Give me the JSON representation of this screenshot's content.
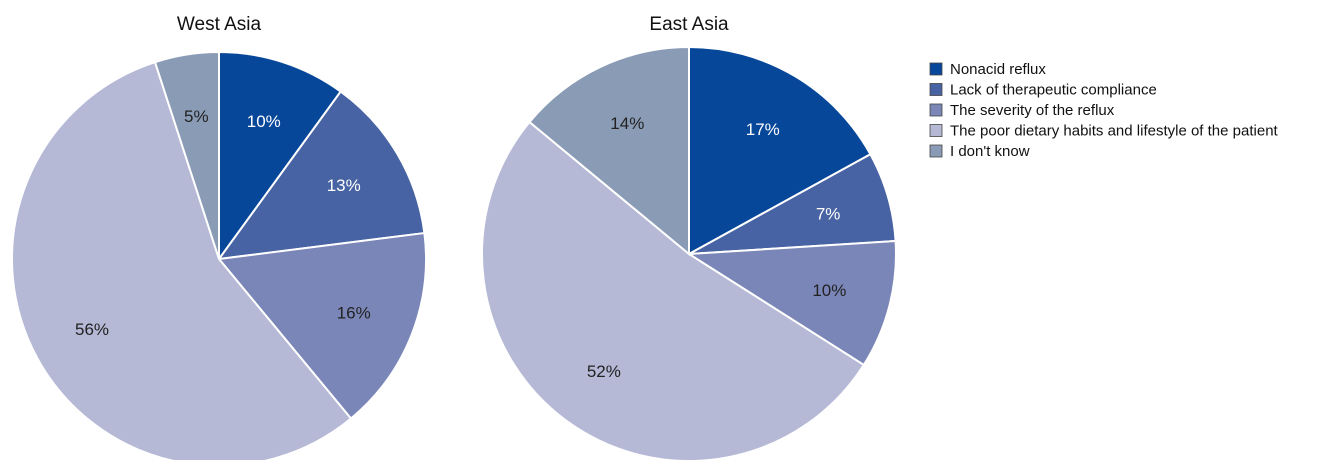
{
  "chart_data": [
    {
      "type": "pie",
      "title": "West Asia",
      "categories": [
        "Nonacid reflux",
        "Lack of therapeutic compliance",
        "The severity of the reflux",
        "The poor dietary habits and lifestyle of the patient",
        "I don't know"
      ],
      "values": [
        10,
        13,
        16,
        56,
        5
      ],
      "labels": [
        "10%",
        "13%",
        "16%",
        "56%",
        "5%"
      ],
      "start_angle_deg": 0,
      "direction": "clockwise"
    },
    {
      "type": "pie",
      "title": "East Asia",
      "categories": [
        "Nonacid reflux",
        "Lack of therapeutic compliance",
        "The severity of the reflux",
        "The poor dietary habits and lifestyle of the patient",
        "I don't know"
      ],
      "values": [
        17,
        7,
        10,
        52,
        14
      ],
      "labels": [
        "17%",
        "7%",
        "10%",
        "52%",
        "14%"
      ],
      "start_angle_deg": 0,
      "direction": "clockwise"
    }
  ],
  "legend": {
    "placement": "right",
    "items": [
      {
        "label": "Nonacid reflux",
        "color": "#07479a"
      },
      {
        "label": "Lack of therapeutic compliance",
        "color": "#4763a3"
      },
      {
        "label": "The severity of the reflux",
        "color": "#7a86b7"
      },
      {
        "label": "The poor dietary habits and lifestyle of the patient",
        "color": "#b5b9d6"
      },
      {
        "label": "I don't know",
        "color": "#8a9bb5"
      }
    ]
  },
  "colors": {
    "series": [
      "#07479a",
      "#4763a3",
      "#7a86b7",
      "#b5b9d6",
      "#8a9bb5"
    ],
    "label_on_dark": "#ffffff",
    "label_on_light": "#222222",
    "slice_border": "#ffffff"
  }
}
